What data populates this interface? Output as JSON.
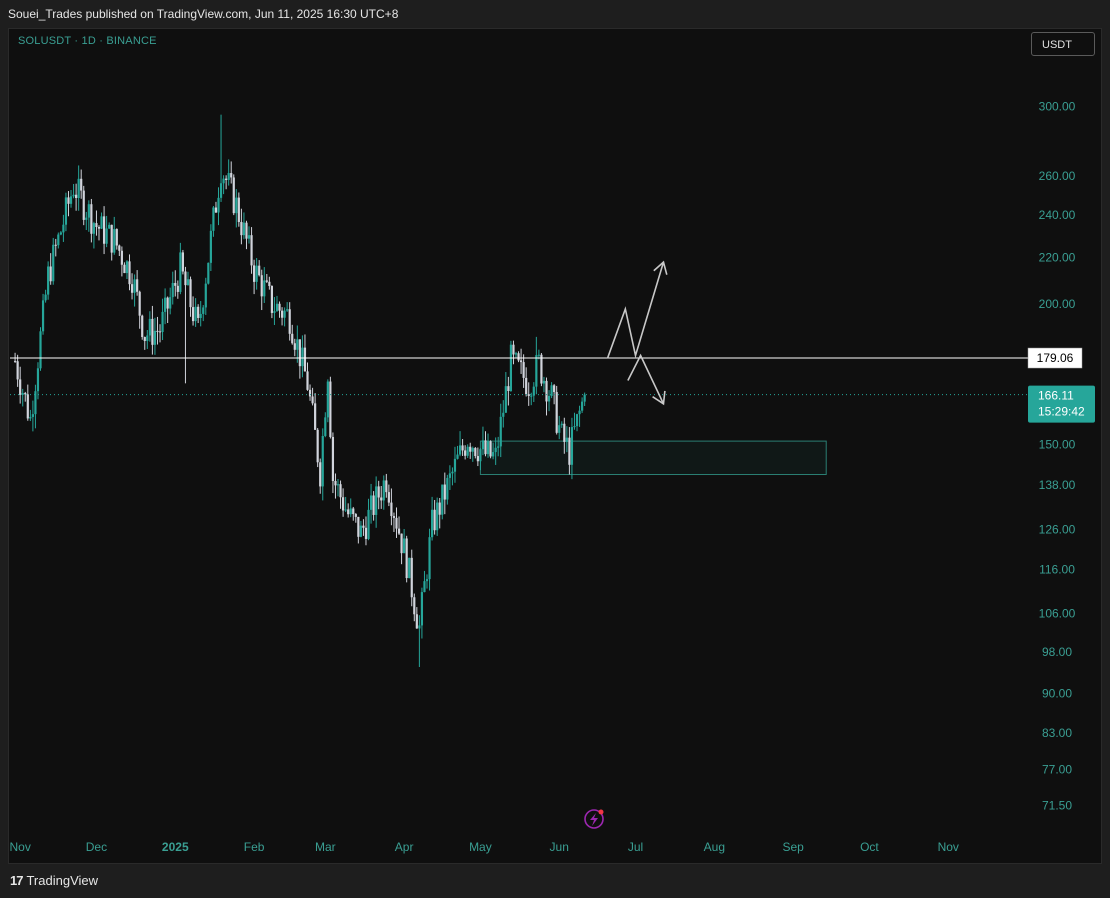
{
  "header": {
    "published": "Souei_Trades published on TradingView.com, Jun 11, 2025 16:30 UTC+8"
  },
  "symbol_line": "SOLUSDT · 1D · BINANCE",
  "currency_button": "USDT",
  "footer": {
    "brand": "TradingView",
    "brand_mark": "17"
  },
  "colors": {
    "bull": "#26a69a",
    "bear": "#d1d4dc",
    "axis_text": "#3a9f93",
    "line": "#ffffff",
    "arrow": "#c8c8c8"
  },
  "chart_data": {
    "type": "candlestick",
    "scale": "log",
    "y_range": [
      68,
      330
    ],
    "x_range": [
      "2024-10-28",
      "2025-11-30"
    ],
    "y_ticks": [
      {
        "value": 300,
        "label": "300.00"
      },
      {
        "value": 260,
        "label": "260.00"
      },
      {
        "value": 240,
        "label": "240.00"
      },
      {
        "value": 220,
        "label": "220.00"
      },
      {
        "value": 200,
        "label": "200.00"
      },
      {
        "value": 150,
        "label": "150.00"
      },
      {
        "value": 138,
        "label": "138.00"
      },
      {
        "value": 126,
        "label": "126.00"
      },
      {
        "value": 116,
        "label": "116.00"
      },
      {
        "value": 106,
        "label": "106.00"
      },
      {
        "value": 98,
        "label": "98.00"
      },
      {
        "value": 90,
        "label": "90.00"
      },
      {
        "value": 83,
        "label": "83.00"
      },
      {
        "value": 77,
        "label": "77.00"
      },
      {
        "value": 71.5,
        "label": "71.50"
      }
    ],
    "x_ticks": [
      {
        "date": "2024-11-01",
        "label": "Nov",
        "bold": false
      },
      {
        "date": "2024-12-01",
        "label": "Dec",
        "bold": false
      },
      {
        "date": "2025-01-01",
        "label": "2025",
        "bold": true
      },
      {
        "date": "2025-02-01",
        "label": "Feb",
        "bold": false
      },
      {
        "date": "2025-03-01",
        "label": "Mar",
        "bold": false
      },
      {
        "date": "2025-04-01",
        "label": "Apr",
        "bold": false
      },
      {
        "date": "2025-05-01",
        "label": "May",
        "bold": false
      },
      {
        "date": "2025-06-01",
        "label": "Jun",
        "bold": false
      },
      {
        "date": "2025-07-01",
        "label": "Jul",
        "bold": false
      },
      {
        "date": "2025-08-01",
        "label": "Aug",
        "bold": false
      },
      {
        "date": "2025-09-01",
        "label": "Sep",
        "bold": false
      },
      {
        "date": "2025-10-01",
        "label": "Oct",
        "bold": false
      },
      {
        "date": "2025-11-01",
        "label": "Nov",
        "bold": false
      }
    ],
    "price_path": [
      {
        "date": "2024-10-30",
        "close": 178
      },
      {
        "date": "2024-11-05",
        "close": 158
      },
      {
        "date": "2024-11-12",
        "close": 212
      },
      {
        "date": "2024-11-22",
        "close": 255
      },
      {
        "date": "2024-12-01",
        "close": 235
      },
      {
        "date": "2024-12-08",
        "close": 228
      },
      {
        "date": "2024-12-15",
        "close": 212
      },
      {
        "date": "2024-12-20",
        "close": 188
      },
      {
        "date": "2024-12-26",
        "close": 190
      },
      {
        "date": "2025-01-03",
        "close": 215
      },
      {
        "date": "2025-01-10",
        "close": 190
      },
      {
        "date": "2025-01-19",
        "close": 265
      },
      {
        "date": "2025-01-25",
        "close": 245
      },
      {
        "date": "2025-02-01",
        "close": 215
      },
      {
        "date": "2025-02-08",
        "close": 200
      },
      {
        "date": "2025-02-15",
        "close": 195
      },
      {
        "date": "2025-02-22",
        "close": 170
      },
      {
        "date": "2025-02-27",
        "close": 142
      },
      {
        "date": "2025-03-02",
        "close": 175
      },
      {
        "date": "2025-03-04",
        "close": 140
      },
      {
        "date": "2025-03-10",
        "close": 130
      },
      {
        "date": "2025-03-15",
        "close": 125
      },
      {
        "date": "2025-03-25",
        "close": 140
      },
      {
        "date": "2025-04-02",
        "close": 118
      },
      {
        "date": "2025-04-07",
        "close": 103
      },
      {
        "date": "2025-04-12",
        "close": 127
      },
      {
        "date": "2025-04-22",
        "close": 145
      },
      {
        "date": "2025-04-26",
        "close": 152
      },
      {
        "date": "2025-05-03",
        "close": 147
      },
      {
        "date": "2025-05-07",
        "close": 146
      },
      {
        "date": "2025-05-13",
        "close": 178
      },
      {
        "date": "2025-05-20",
        "close": 170
      },
      {
        "date": "2025-05-24",
        "close": 177
      },
      {
        "date": "2025-05-29",
        "close": 165
      },
      {
        "date": "2025-06-02",
        "close": 152
      },
      {
        "date": "2025-06-05",
        "close": 148
      },
      {
        "date": "2025-06-11",
        "close": 166.11
      }
    ],
    "spikes": [
      {
        "date": "2025-01-19",
        "high": 295
      },
      {
        "date": "2025-01-05",
        "low": 170
      },
      {
        "date": "2025-04-07",
        "low": 95
      },
      {
        "date": "2025-05-23",
        "high": 187
      },
      {
        "date": "2025-06-05",
        "low": 141
      }
    ],
    "horizontal_line": {
      "value": 179.06,
      "label": "179.06",
      "start": "2024-10-28"
    },
    "current_price": {
      "value": 166.11,
      "label": "166.11",
      "countdown": "15:29:42"
    },
    "zone": {
      "from": "2025-05-01",
      "to": "2025-09-14",
      "top": 151,
      "bottom": 141
    },
    "projection_up": [
      {
        "date": "2025-06-20",
        "value": 179
      },
      {
        "date": "2025-06-27",
        "value": 198
      },
      {
        "date": "2025-07-01",
        "value": 180
      },
      {
        "date": "2025-07-12",
        "value": 218
      }
    ],
    "projection_down": [
      {
        "date": "2025-06-28",
        "value": 171
      },
      {
        "date": "2025-07-03",
        "value": 180
      },
      {
        "date": "2025-07-12",
        "value": 163
      }
    ]
  }
}
